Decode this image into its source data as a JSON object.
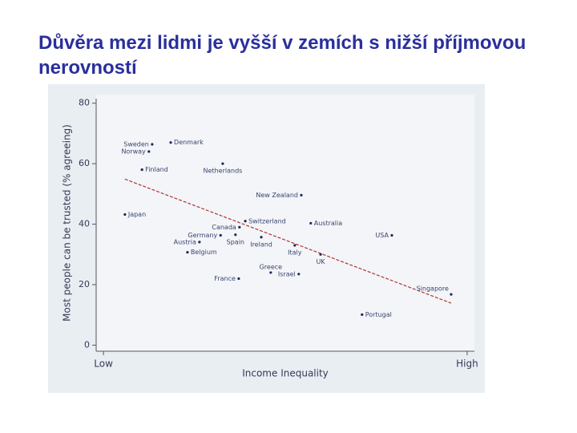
{
  "chart_data": {
    "type": "scatter",
    "title": "Důvěra mezi lidmi je vyšší v zemích s nižší příjmovou nerovností",
    "x_label": "Income Inequality",
    "y_label": "Most people can be trusted (% agreeing)",
    "labels": [
      "Sweden",
      "Denmark",
      "Norway",
      "Finland",
      "Netherlands",
      "New Zealand",
      "Japan",
      "Switzerland",
      "Australia",
      "Canada",
      "USA",
      "Germany",
      "Spain",
      "Ireland",
      "Austria",
      "Belgium",
      "Italy",
      "UK",
      "Greece",
      "Israel",
      "France",
      "Singapore",
      "Portugal"
    ],
    "x": [
      13.4,
      18.5,
      12.5,
      10.6,
      32.8,
      54.4,
      5.9,
      39,
      57,
      37.4,
      79.3,
      32.2,
      36.3,
      43.4,
      26.4,
      23.1,
      52.6,
      59.7,
      46,
      53.7,
      37.2,
      95.6,
      71.1
    ],
    "y": [
      66.4,
      67,
      64,
      58,
      60,
      49.6,
      43.2,
      41,
      40.3,
      39,
      36.3,
      36.3,
      36.5,
      35.7,
      34.1,
      30.7,
      33,
      30,
      24,
      23.5,
      22,
      16.8,
      10.1
    ],
    "color": "#1c2a5c",
    "fit": {
      "x": [
        5.9,
        95.6
      ],
      "y": [
        54.9,
        13.9
      ],
      "color": "#b03434"
    },
    "xlim": [
      -2,
      102
    ],
    "xticks": [
      {
        "value": 0,
        "label": "Low"
      },
      {
        "value": 100,
        "label": "High"
      }
    ],
    "ylim": [
      -2,
      81.5
    ],
    "yticks": [
      0,
      20,
      40,
      60,
      80
    ]
  }
}
